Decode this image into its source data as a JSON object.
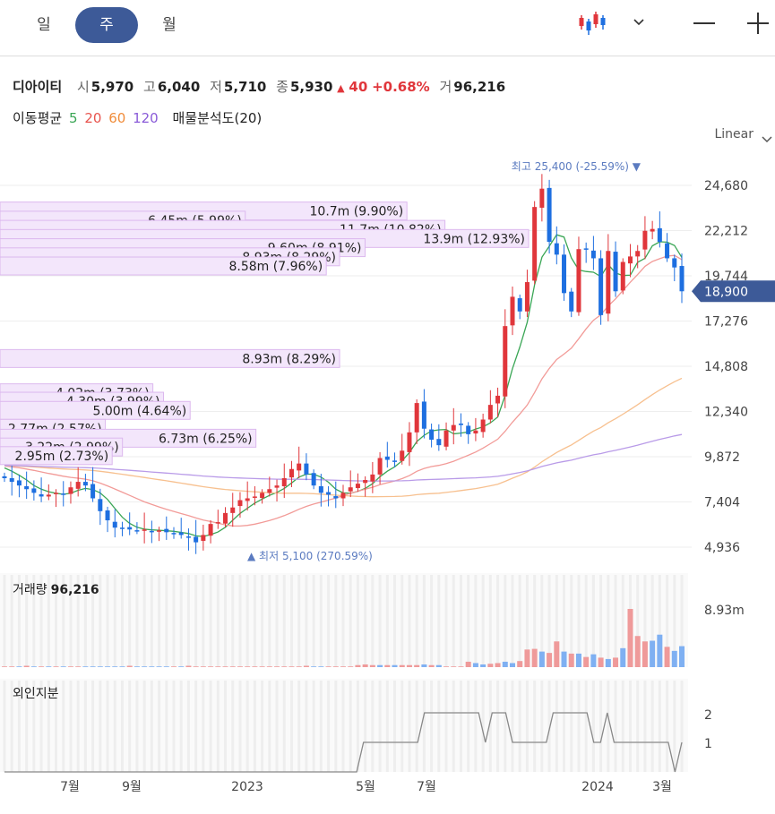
{
  "tabs": [
    {
      "label": "일",
      "active": false
    },
    {
      "label": "주",
      "active": true
    },
    {
      "label": "월",
      "active": false
    }
  ],
  "stock": {
    "name": "디아이티",
    "open_label": "시",
    "open": "5,970",
    "high_label": "고",
    "high": "6,040",
    "low_label": "저",
    "low": "5,710",
    "close_label": "종",
    "close": "5,930",
    "change_arrow": "▲",
    "change": "40",
    "change_pct": "+0.68%",
    "volume_label": "거",
    "volume": "96,216"
  },
  "indicators": {
    "ma_label": "이동평균",
    "ma_periods": [
      {
        "label": "5",
        "color": "#3aa655"
      },
      {
        "label": "20",
        "color": "#e8544e"
      },
      {
        "label": "60",
        "color": "#f08c3a"
      },
      {
        "label": "120",
        "color": "#8a5bd8"
      }
    ],
    "vp_label": "매물분석도(20)"
  },
  "scale_mode": "Linear",
  "price_axis": [
    "24,680",
    "22,212",
    "19,744",
    "17,276",
    "14,808",
    "12,340",
    "9,872",
    "7,404",
    "4,936"
  ],
  "current_price": "18,900",
  "high_marker": {
    "label": "최고",
    "value": "25,400 (-25.59%)",
    "arrow": "▼"
  },
  "low_marker": {
    "label": "최저",
    "value": "5,100 (270.59%)",
    "arrow": "▲"
  },
  "volume_profile": [
    "10.7m (9.90%)",
    "6.45m (5.99%)",
    "11.7m (10.82%)",
    "13.9m (12.93%)",
    "9.60m (8.91%)",
    "8.93m (8.29%)",
    "8.58m (7.96%)",
    "8.93m (8.29%)",
    "4.02m (3.73%)",
    "4.30m (3.99%)",
    "5.00m (4.64%)",
    "2.77m (2.57%)",
    "6.73m (6.25%)",
    "3.22m (2.99%)",
    "2.95m (2.73%)"
  ],
  "volume_panel": {
    "title": "거래량",
    "value": "96,216",
    "axis_label": "8.93m"
  },
  "foreign_panel": {
    "title": "외인지분",
    "axis": [
      "2",
      "1"
    ]
  },
  "x_axis": [
    "7월",
    "9월",
    "2023",
    "5월",
    "7월",
    "2024",
    "3월"
  ],
  "colors": {
    "up": "#e0363b",
    "down": "#1e6fe0",
    "accent": "#3d5a98",
    "vp_fill": "#f3e6fb",
    "vp_border": "#dcb8ee"
  },
  "chart_data": [
    {
      "type": "candlestick",
      "title": "디아이티",
      "ylim": [
        4936,
        24680
      ],
      "y_ticks": [
        4936,
        7404,
        9872,
        12340,
        14808,
        17276,
        19744,
        22212,
        24680
      ],
      "x_tick_labels": [
        "7월",
        "9월",
        "2023",
        "5월",
        "7월",
        "2024",
        "3월"
      ],
      "current": 18900,
      "high": 25400,
      "low": 5100,
      "closes_approx": [
        8700,
        8500,
        8300,
        8100,
        7900,
        7700,
        7800,
        7900,
        7800,
        8200,
        8500,
        8300,
        7600,
        6900,
        6400,
        6000,
        5950,
        5900,
        5850,
        5900,
        5800,
        5850,
        5750,
        5700,
        5600,
        5500,
        5200,
        5600,
        6200,
        6300,
        6800,
        7100,
        7500,
        7600,
        7700,
        7900,
        8100,
        8300,
        8700,
        9200,
        9500,
        8900,
        8300,
        7900,
        7800,
        7600,
        7900,
        8200,
        8400,
        8600,
        8900,
        9800,
        9700,
        9600,
        10200,
        11200,
        12800,
        11400,
        10800,
        10500,
        11300,
        11600,
        11600,
        11100,
        11300,
        11900,
        12700,
        13200,
        17000,
        18600,
        17800,
        19400,
        23500,
        24500,
        21600,
        20900,
        18800,
        17800,
        21200,
        21200,
        20700,
        17600,
        21100,
        18900,
        20500,
        20800,
        21100,
        22200,
        22300,
        21600,
        20700,
        20200,
        18900
      ],
      "moving_averages": [
        {
          "name": "5",
          "color": "#3aa655"
        },
        {
          "name": "20",
          "color": "#e8544e"
        },
        {
          "name": "60",
          "color": "#f08c3a"
        },
        {
          "name": "120",
          "color": "#8a5bd8"
        }
      ],
      "volume_profile_bins": [
        {
          "price": 23280,
          "volume_m": 10.7,
          "pct": 9.9
        },
        {
          "price": 22780,
          "volume_m": 6.45,
          "pct": 5.99
        },
        {
          "price": 22280,
          "volume_m": 11.7,
          "pct": 10.82
        },
        {
          "price": 21780,
          "volume_m": 13.9,
          "pct": 12.93
        },
        {
          "price": 21280,
          "volume_m": 9.6,
          "pct": 8.91
        },
        {
          "price": 20780,
          "volume_m": 8.93,
          "pct": 8.29
        },
        {
          "price": 20280,
          "volume_m": 8.58,
          "pct": 7.96
        },
        {
          "price": 15230,
          "volume_m": 8.93,
          "pct": 8.29
        },
        {
          "price": 13360,
          "volume_m": 4.02,
          "pct": 3.73
        },
        {
          "price": 12900,
          "volume_m": 4.3,
          "pct": 3.99
        },
        {
          "price": 12400,
          "volume_m": 5.0,
          "pct": 4.64
        },
        {
          "price": 11420,
          "volume_m": 2.77,
          "pct": 2.57
        },
        {
          "price": 10880,
          "volume_m": 6.73,
          "pct": 6.25
        },
        {
          "price": 10400,
          "volume_m": 3.22,
          "pct": 2.99
        },
        {
          "price": 9930,
          "volume_m": 2.95,
          "pct": 2.73
        }
      ]
    },
    {
      "type": "bar",
      "title": "거래량",
      "axis_label": "8.93m",
      "values_m": [
        0.1,
        0.1,
        0.1,
        0.2,
        0.1,
        0.1,
        0.1,
        0.1,
        0.1,
        0.1,
        0.1,
        0.1,
        0.1,
        0.1,
        0.1,
        0.1,
        0.1,
        0.2,
        0.1,
        0.1,
        0.1,
        0.1,
        0.1,
        0.1,
        0.1,
        0.2,
        0.1,
        0.1,
        0.1,
        0.1,
        0.1,
        0.1,
        0.1,
        0.1,
        0.1,
        0.1,
        0.1,
        0.1,
        0.1,
        0.1,
        0.1,
        0.2,
        0.1,
        0.1,
        0.1,
        0.1,
        0.1,
        0.1,
        0.3,
        0.4,
        0.3,
        0.3,
        0.3,
        0.3,
        0.3,
        0.3,
        0.3,
        0.4,
        0.3,
        0.3,
        0.1,
        0.1,
        0.1,
        0.8,
        0.6,
        0.4,
        0.5,
        0.6,
        0.8,
        0.6,
        0.9,
        2.6,
        2.7,
        2.3,
        2.1,
        3.8,
        2.3,
        2.0,
        2.0,
        1.5,
        1.9,
        1.4,
        1.2,
        1.4,
        2.8,
        8.6,
        4.6,
        3.8,
        3.9,
        4.8,
        3.0,
        2.4,
        3.1
      ],
      "up_flags": [
        1,
        1,
        0,
        1,
        0,
        1,
        0,
        1,
        0,
        1,
        1,
        0,
        0,
        0,
        0,
        0,
        0,
        1,
        0,
        0,
        0,
        0,
        0,
        1,
        0,
        1,
        1,
        1,
        1,
        1,
        1,
        1,
        1,
        1,
        1,
        1,
        1,
        1,
        1,
        1,
        1,
        1,
        0,
        0,
        1,
        1,
        1,
        1,
        1,
        1,
        1,
        0,
        1,
        0,
        1,
        1,
        1,
        0,
        1,
        0,
        1,
        1,
        1,
        1,
        0,
        0,
        1,
        1,
        0,
        0,
        1,
        1,
        1,
        0,
        1,
        1,
        0,
        1,
        0,
        1,
        0,
        1,
        0,
        1,
        0,
        1,
        1,
        1,
        0,
        0,
        1,
        0,
        0
      ]
    },
    {
      "type": "line",
      "title": "외인지분",
      "y_ticks": [
        1,
        2
      ],
      "values": [
        0,
        0,
        0,
        0,
        0,
        0,
        0,
        0,
        0,
        0,
        0,
        0,
        0,
        0,
        0,
        0,
        0,
        0,
        0,
        0,
        0,
        0,
        0,
        0,
        0,
        0,
        0,
        0,
        0,
        0,
        0,
        0,
        0,
        0,
        0,
        0,
        0,
        0,
        0,
        0,
        0,
        0,
        0,
        0,
        0,
        0,
        0,
        0,
        0,
        0,
        0,
        0,
        0,
        1,
        1,
        1,
        1,
        1,
        1,
        1,
        1,
        1,
        2,
        2,
        2,
        2,
        2,
        2,
        2,
        2,
        2,
        1,
        2,
        2,
        2,
        1,
        1,
        1,
        1,
        1,
        1,
        2,
        2,
        2,
        2,
        2,
        2,
        1,
        1,
        2,
        1,
        1,
        1,
        1,
        1,
        1,
        1,
        1,
        1,
        0,
        1
      ]
    }
  ]
}
